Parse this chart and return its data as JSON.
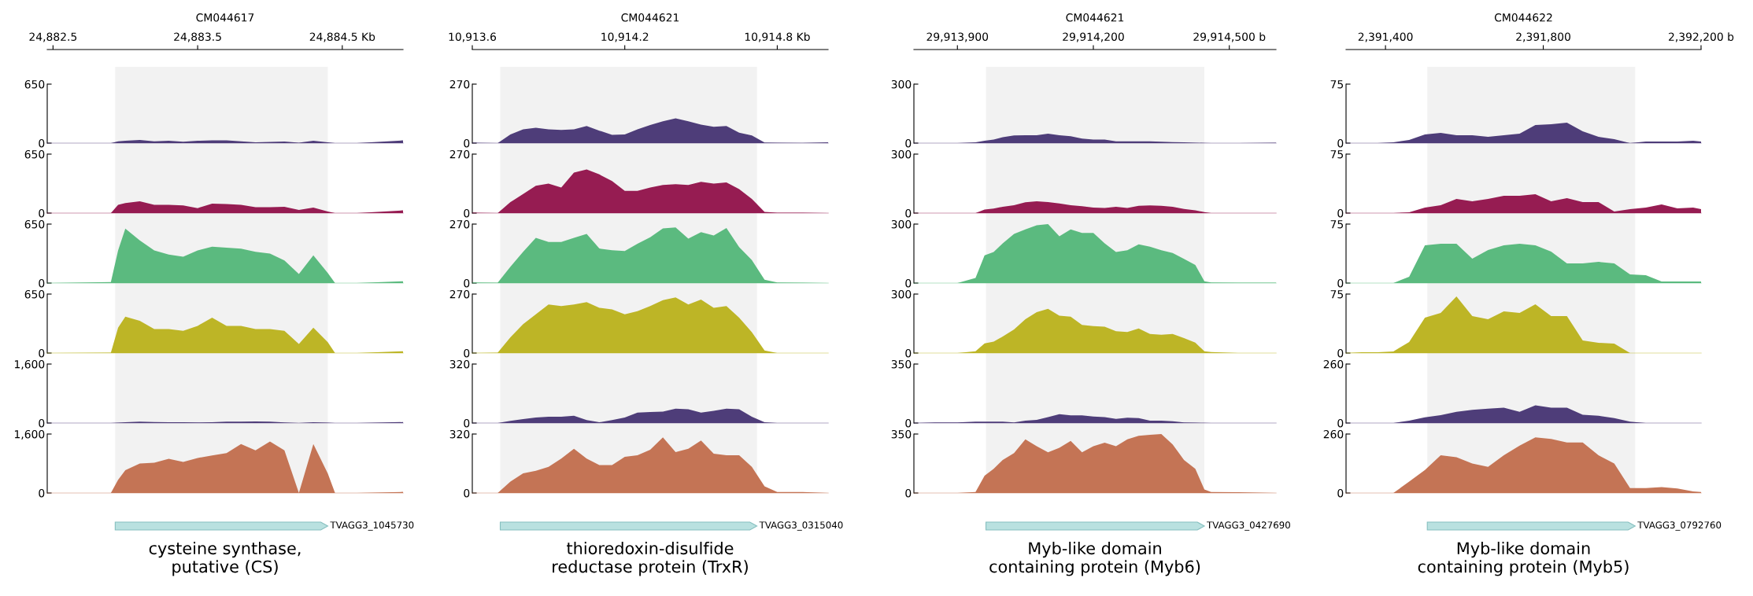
{
  "chart_data": [
    {
      "type": "area",
      "xlabel": "CM044617",
      "x": [
        24882.46,
        24882.9,
        24882.95,
        24883.0,
        24883.1,
        24883.2,
        24883.3,
        24883.4,
        24883.5,
        24883.6,
        24883.7,
        24883.8,
        24883.9,
        24884.0,
        24884.1,
        24884.2,
        24884.3,
        24884.4,
        24884.45,
        24884.6,
        24884.92
      ],
      "xlim": [
        24882.46,
        24884.92
      ],
      "xticks": [
        {
          "value": 24882.5,
          "label": "24,882.5"
        },
        {
          "value": 24883.5,
          "label": "24,883.5"
        },
        {
          "value": 24884.5,
          "label": "24,884.5 Kb"
        }
      ],
      "ylim": [
        0,
        650
      ],
      "yticks": [
        0,
        650
      ],
      "bands": [
        {
          "axis": "x",
          "from": 24882.93,
          "to": 24884.4,
          "color": "#f2f2f2"
        }
      ],
      "series": [
        {
          "color": "#4e3d79",
          "values": [
            0,
            0,
            20,
            25,
            35,
            20,
            25,
            15,
            25,
            30,
            30,
            20,
            8,
            12,
            18,
            5,
            25,
            8,
            0,
            0,
            30
          ]
        }
      ]
    },
    {
      "type": "area",
      "tick_labels": "y",
      "x": [
        24882.46,
        24882.9,
        24882.95,
        24883.0,
        24883.1,
        24883.2,
        24883.3,
        24883.4,
        24883.5,
        24883.6,
        24883.7,
        24883.8,
        24883.9,
        24884.0,
        24884.1,
        24884.2,
        24884.3,
        24884.4,
        24884.45,
        24884.6,
        24884.92
      ],
      "xlim": [
        24882.46,
        24884.92
      ],
      "ylim": [
        0,
        650
      ],
      "yticks": [
        0,
        650
      ],
      "bands": [
        {
          "axis": "x",
          "from": 24882.93,
          "to": 24884.4,
          "color": "#f2f2f2"
        }
      ],
      "series": [
        {
          "color": "#961c52",
          "values": [
            0,
            0,
            90,
            110,
            130,
            90,
            90,
            85,
            55,
            105,
            100,
            90,
            65,
            65,
            70,
            35,
            60,
            18,
            0,
            0,
            30
          ]
        }
      ]
    },
    {
      "type": "area",
      "tick_labels": "y",
      "x": [
        24882.46,
        24882.9,
        24882.95,
        24883.0,
        24883.1,
        24883.2,
        24883.3,
        24883.4,
        24883.5,
        24883.6,
        24883.7,
        24883.8,
        24883.9,
        24884.0,
        24884.1,
        24884.2,
        24884.3,
        24884.4,
        24884.45,
        24884.6,
        24884.92
      ],
      "xlim": [
        24882.46,
        24884.92
      ],
      "ylim": [
        0,
        650
      ],
      "yticks": [
        0,
        650
      ],
      "bands": [
        {
          "axis": "x",
          "from": 24882.93,
          "to": 24884.4,
          "color": "#f2f2f2"
        }
      ],
      "series": [
        {
          "color": "#5bba7f",
          "values": [
            0,
            10,
            360,
            600,
            470,
            360,
            315,
            290,
            360,
            400,
            390,
            380,
            345,
            325,
            250,
            100,
            305,
            110,
            0,
            0,
            20
          ]
        }
      ]
    },
    {
      "type": "area",
      "tick_labels": "y",
      "x": [
        24882.46,
        24882.9,
        24882.95,
        24883.0,
        24883.1,
        24883.2,
        24883.3,
        24883.4,
        24883.5,
        24883.6,
        24883.7,
        24883.8,
        24883.9,
        24884.0,
        24884.1,
        24884.2,
        24884.3,
        24884.4,
        24884.45,
        24884.6,
        24884.92
      ],
      "xlim": [
        24882.46,
        24884.92
      ],
      "ylim": [
        0,
        650
      ],
      "yticks": [
        0,
        650
      ],
      "bands": [
        {
          "axis": "x",
          "from": 24882.93,
          "to": 24884.4,
          "color": "#f2f2f2"
        }
      ],
      "series": [
        {
          "color": "#bdb526",
          "values": [
            0,
            5,
            280,
            400,
            355,
            265,
            265,
            245,
            300,
            390,
            300,
            300,
            265,
            265,
            245,
            100,
            280,
            120,
            0,
            0,
            20
          ]
        }
      ]
    },
    {
      "type": "area",
      "tick_labels": "y",
      "x": [
        24882.46,
        24882.9,
        24882.95,
        24883.0,
        24883.1,
        24883.2,
        24883.3,
        24883.4,
        24883.5,
        24883.6,
        24883.7,
        24883.8,
        24883.9,
        24884.0,
        24884.1,
        24884.2,
        24884.3,
        24884.4,
        24884.45,
        24884.6,
        24884.92
      ],
      "xlim": [
        24882.46,
        24884.92
      ],
      "ylim": [
        0,
        1600
      ],
      "yticks": [
        0,
        {
          "value": 1600,
          "label": "1,600"
        }
      ],
      "bands": [
        {
          "axis": "x",
          "from": 24882.93,
          "to": 24884.4,
          "color": "#f2f2f2"
        }
      ],
      "series": [
        {
          "color": "#4e3d79",
          "values": [
            0,
            0,
            10,
            20,
            40,
            25,
            20,
            20,
            15,
            20,
            35,
            40,
            45,
            35,
            15,
            0,
            20,
            10,
            0,
            0,
            25
          ]
        }
      ]
    },
    {
      "type": "area",
      "tick_labels": "y",
      "x": [
        24882.46,
        24882.9,
        24882.95,
        24883.0,
        24883.1,
        24883.2,
        24883.3,
        24883.4,
        24883.5,
        24883.6,
        24883.7,
        24883.8,
        24883.9,
        24884.0,
        24884.1,
        24884.2,
        24884.3,
        24884.4,
        24884.45,
        24884.6,
        24884.92
      ],
      "xlim": [
        24882.46,
        24884.92
      ],
      "ylim": [
        0,
        1600
      ],
      "yticks": [
        0,
        {
          "value": 1600,
          "label": "1,600"
        }
      ],
      "bands": [
        {
          "axis": "x",
          "from": 24882.93,
          "to": 24884.4,
          "color": "#f2f2f2"
        }
      ],
      "annotations": [
        "TVAGG3_1045730",
        "cysteine synthase,\nputative (CS)"
      ],
      "series": [
        {
          "color": "#c47455",
          "values": [
            0,
            0,
            355,
            620,
            800,
            820,
            930,
            845,
            950,
            1020,
            1085,
            1330,
            1155,
            1400,
            1155,
            0,
            1330,
            530,
            0,
            0,
            30
          ]
        }
      ]
    },
    {
      "type": "area",
      "xlabel": "CM044621",
      "x": [
        10913.6,
        10913.7,
        10913.75,
        10913.8,
        10913.85,
        10913.9,
        10913.95,
        10914.0,
        10914.05,
        10914.1,
        10914.15,
        10914.2,
        10914.25,
        10914.3,
        10914.35,
        10914.4,
        10914.45,
        10914.5,
        10914.55,
        10914.6,
        10914.65,
        10914.7,
        10914.75,
        10914.8,
        10914.9,
        10915.0
      ],
      "xlim": [
        10913.6,
        10915.0
      ],
      "xticks": [
        {
          "value": 10913.6,
          "label": "10,913.6"
        },
        {
          "value": 10914.2,
          "label": "10,914.2"
        },
        {
          "value": 10914.8,
          "label": "10,914.8 Kb"
        }
      ],
      "ylim": [
        0,
        270
      ],
      "yticks": [
        0,
        270
      ],
      "bands": [
        {
          "axis": "x",
          "from": 10913.71,
          "to": 10914.72,
          "color": "#f2f2f2"
        }
      ],
      "series": [
        {
          "color": "#4e3d79",
          "values": [
            2,
            0,
            40,
            63,
            70,
            63,
            60,
            63,
            78,
            57,
            38,
            40,
            63,
            83,
            100,
            113,
            100,
            85,
            75,
            78,
            48,
            35,
            3,
            2,
            1,
            4
          ]
        }
      ]
    },
    {
      "type": "area",
      "tick_labels": "y",
      "x": [
        10913.6,
        10913.7,
        10913.75,
        10913.8,
        10913.85,
        10913.9,
        10913.95,
        10914.0,
        10914.05,
        10914.1,
        10914.15,
        10914.2,
        10914.25,
        10914.3,
        10914.35,
        10914.4,
        10914.45,
        10914.5,
        10914.55,
        10914.6,
        10914.65,
        10914.7,
        10914.75,
        10914.8,
        10914.9,
        10915.0
      ],
      "xlim": [
        10913.6,
        10915.0
      ],
      "ylim": [
        0,
        270
      ],
      "yticks": [
        0,
        270
      ],
      "bands": [
        {
          "axis": "x",
          "from": 10913.71,
          "to": 10914.72,
          "color": "#f2f2f2"
        }
      ],
      "series": [
        {
          "color": "#961c52",
          "values": [
            2,
            0,
            50,
            87,
            125,
            135,
            117,
            185,
            200,
            177,
            147,
            102,
            102,
            117,
            129,
            132,
            129,
            143,
            135,
            140,
            110,
            65,
            5,
            2,
            2,
            0
          ]
        }
      ]
    },
    {
      "type": "area",
      "tick_labels": "y",
      "x": [
        10913.6,
        10913.7,
        10913.75,
        10913.8,
        10913.85,
        10913.9,
        10913.95,
        10914.0,
        10914.05,
        10914.1,
        10914.15,
        10914.2,
        10914.25,
        10914.3,
        10914.35,
        10914.4,
        10914.45,
        10914.5,
        10914.55,
        10914.6,
        10914.65,
        10914.7,
        10914.75,
        10914.8,
        10914.9,
        10915.0
      ],
      "xlim": [
        10913.6,
        10915.0
      ],
      "ylim": [
        0,
        270
      ],
      "yticks": [
        0,
        270
      ],
      "bands": [
        {
          "axis": "x",
          "from": 10913.71,
          "to": 10914.72,
          "color": "#f2f2f2"
        }
      ],
      "series": [
        {
          "color": "#5bba7f",
          "values": [
            3,
            2,
            75,
            143,
            207,
            188,
            188,
            207,
            225,
            158,
            150,
            147,
            180,
            210,
            250,
            255,
            203,
            233,
            218,
            252,
            165,
            105,
            15,
            3,
            2,
            0
          ]
        }
      ]
    },
    {
      "type": "area",
      "tick_labels": "y",
      "x": [
        10913.6,
        10913.7,
        10913.75,
        10913.8,
        10913.85,
        10913.9,
        10913.95,
        10914.0,
        10914.05,
        10914.1,
        10914.15,
        10914.2,
        10914.25,
        10914.3,
        10914.35,
        10914.4,
        10914.45,
        10914.5,
        10914.55,
        10914.6,
        10914.65,
        10914.7,
        10914.75,
        10914.8,
        10914.9,
        10915.0
      ],
      "xlim": [
        10913.6,
        10915.0
      ],
      "ylim": [
        0,
        270
      ],
      "yticks": [
        0,
        270
      ],
      "bands": [
        {
          "axis": "x",
          "from": 10913.71,
          "to": 10914.72,
          "color": "#f2f2f2"
        }
      ],
      "series": [
        {
          "color": "#bdb526",
          "values": [
            0,
            2,
            72,
            132,
            177,
            222,
            215,
            222,
            233,
            207,
            200,
            177,
            192,
            215,
            242,
            255,
            222,
            245,
            207,
            215,
            162,
            95,
            12,
            0,
            0,
            0
          ]
        }
      ]
    },
    {
      "type": "area",
      "tick_labels": "y",
      "x": [
        10913.6,
        10913.7,
        10913.75,
        10913.8,
        10913.85,
        10913.9,
        10913.95,
        10914.0,
        10914.05,
        10914.1,
        10914.15,
        10914.2,
        10914.25,
        10914.3,
        10914.35,
        10914.4,
        10914.45,
        10914.5,
        10914.55,
        10914.6,
        10914.65,
        10914.7,
        10914.75,
        10914.8,
        10914.9,
        10915.0
      ],
      "xlim": [
        10913.6,
        10915.0
      ],
      "ylim": [
        0,
        320
      ],
      "yticks": [
        0,
        320
      ],
      "bands": [
        {
          "axis": "x",
          "from": 10913.71,
          "to": 10914.72,
          "color": "#f2f2f2"
        }
      ],
      "series": [
        {
          "color": "#4e3d79",
          "values": [
            0,
            0,
            12,
            21,
            30,
            34,
            34,
            39,
            16,
            4,
            16,
            30,
            57,
            60,
            62,
            78,
            75,
            57,
            66,
            78,
            75,
            34,
            4,
            0,
            0,
            0
          ]
        }
      ]
    },
    {
      "type": "area",
      "tick_labels": "y",
      "x": [
        10913.6,
        10913.7,
        10913.75,
        10913.8,
        10913.85,
        10913.9,
        10913.95,
        10914.0,
        10914.05,
        10914.1,
        10914.15,
        10914.2,
        10914.25,
        10914.3,
        10914.35,
        10914.4,
        10914.45,
        10914.5,
        10914.55,
        10914.6,
        10914.65,
        10914.7,
        10914.75,
        10914.8,
        10914.9,
        10915.0
      ],
      "xlim": [
        10913.6,
        10915.0
      ],
      "ylim": [
        0,
        320
      ],
      "yticks": [
        0,
        320
      ],
      "bands": [
        {
          "axis": "x",
          "from": 10913.71,
          "to": 10914.72,
          "color": "#f2f2f2"
        }
      ],
      "annotations": [
        "TVAGG3_0315040",
        "thioredoxin-disulfide\nreductase protein (TrxR)"
      ],
      "series": [
        {
          "color": "#c47455",
          "values": [
            0,
            0,
            62,
            107,
            121,
            142,
            187,
            240,
            187,
            151,
            151,
            196,
            205,
            235,
            302,
            222,
            240,
            285,
            213,
            205,
            205,
            142,
            36,
            5,
            5,
            0
          ]
        }
      ]
    },
    {
      "type": "area",
      "xlabel": "CM044621",
      "x": [
        29913804,
        29913850,
        29913900,
        29913940,
        29913960,
        29913980,
        29914000,
        29914025,
        29914050,
        29914075,
        29914100,
        29914125,
        29914150,
        29914175,
        29914200,
        29914225,
        29914250,
        29914275,
        29914300,
        29914325,
        29914350,
        29914375,
        29914400,
        29914425,
        29914445,
        29914460,
        29914520,
        29914603
      ],
      "xlim": [
        29913804,
        29914603
      ],
      "xticks": [
        {
          "value": 29913900,
          "label": "29,913,900"
        },
        {
          "value": 29914200,
          "label": "29,914,200"
        },
        {
          "value": 29914500,
          "label": "29,914,500 b"
        }
      ],
      "ylim": [
        0,
        300
      ],
      "yticks": [
        0,
        300
      ],
      "bands": [
        {
          "axis": "x",
          "from": 29913963,
          "to": 29914445,
          "color": "#f2f2f2"
        }
      ],
      "series": [
        {
          "color": "#4e3d79",
          "values": [
            0,
            0,
            0,
            4,
            12,
            18,
            30,
            39,
            40,
            40,
            48,
            40,
            35,
            23,
            18,
            18,
            9,
            9,
            9,
            9,
            7,
            5,
            4,
            2,
            1,
            0,
            0,
            2
          ]
        }
      ]
    },
    {
      "type": "area",
      "tick_labels": "y",
      "x": [
        29913804,
        29913850,
        29913900,
        29913940,
        29913960,
        29913980,
        29914000,
        29914025,
        29914050,
        29914075,
        29914100,
        29914125,
        29914150,
        29914175,
        29914200,
        29914225,
        29914250,
        29914275,
        29914300,
        29914325,
        29914350,
        29914375,
        29914400,
        29914425,
        29914445,
        29914460,
        29914520,
        29914603
      ],
      "xlim": [
        29913804,
        29914603
      ],
      "ylim": [
        0,
        300
      ],
      "yticks": [
        0,
        300
      ],
      "bands": [
        {
          "axis": "x",
          "from": 29913963,
          "to": 29914445,
          "color": "#f2f2f2"
        }
      ],
      "series": [
        {
          "color": "#961c52",
          "values": [
            0,
            0,
            0,
            0,
            18,
            23,
            32,
            40,
            55,
            60,
            56,
            49,
            40,
            35,
            28,
            26,
            32,
            26,
            37,
            39,
            37,
            32,
            21,
            14,
            5,
            0,
            0,
            0
          ]
        }
      ]
    },
    {
      "type": "area",
      "tick_labels": "y",
      "x": [
        29913804,
        29913850,
        29913900,
        29913940,
        29913960,
        29913980,
        29914000,
        29914025,
        29914050,
        29914075,
        29914100,
        29914125,
        29914150,
        29914175,
        29914200,
        29914225,
        29914250,
        29914275,
        29914300,
        29914325,
        29914350,
        29914375,
        29914400,
        29914425,
        29914445,
        29914460,
        29914520,
        29914603
      ],
      "xlim": [
        29913804,
        29914603
      ],
      "ylim": [
        0,
        300
      ],
      "yticks": [
        0,
        300
      ],
      "bands": [
        {
          "axis": "x",
          "from": 29913963,
          "to": 29914445,
          "color": "#f2f2f2"
        }
      ],
      "series": [
        {
          "color": "#5bba7f",
          "values": [
            0,
            0,
            0,
            26,
            141,
            158,
            202,
            250,
            273,
            294,
            300,
            238,
            273,
            255,
            255,
            202,
            158,
            167,
            197,
            185,
            167,
            153,
            123,
            92,
            9,
            3,
            2,
            2
          ]
        }
      ]
    },
    {
      "type": "area",
      "tick_labels": "y",
      "x": [
        29913804,
        29913850,
        29913900,
        29913940,
        29913960,
        29913980,
        29914000,
        29914025,
        29914050,
        29914075,
        29914100,
        29914125,
        29914150,
        29914175,
        29914200,
        29914225,
        29914250,
        29914275,
        29914300,
        29914325,
        29914350,
        29914375,
        29914400,
        29914425,
        29914445,
        29914460,
        29914520,
        29914603
      ],
      "xlim": [
        29913804,
        29914603
      ],
      "ylim": [
        0,
        300
      ],
      "yticks": [
        0,
        300
      ],
      "bands": [
        {
          "axis": "x",
          "from": 29913963,
          "to": 29914445,
          "color": "#f2f2f2"
        }
      ],
      "series": [
        {
          "color": "#bdb526",
          "values": [
            0,
            0,
            0,
            9,
            49,
            58,
            84,
            120,
            172,
            208,
            225,
            190,
            185,
            143,
            137,
            134,
            111,
            107,
            125,
            97,
            93,
            97,
            76,
            53,
            9,
            5,
            0,
            0
          ]
        }
      ]
    },
    {
      "type": "area",
      "tick_labels": "y",
      "x": [
        29913804,
        29913850,
        29913900,
        29913940,
        29913960,
        29913980,
        29914000,
        29914025,
        29914050,
        29914075,
        29914100,
        29914125,
        29914150,
        29914175,
        29914200,
        29914225,
        29914250,
        29914275,
        29914300,
        29914325,
        29914350,
        29914375,
        29914400,
        29914425,
        29914445,
        29914460,
        29914520,
        29914603
      ],
      "xlim": [
        29913804,
        29914603
      ],
      "ylim": [
        0,
        350
      ],
      "yticks": [
        0,
        350
      ],
      "bands": [
        {
          "axis": "x",
          "from": 29913963,
          "to": 29914445,
          "color": "#f2f2f2"
        }
      ],
      "series": [
        {
          "color": "#4e3d79",
          "values": [
            0,
            4,
            3,
            8,
            8,
            8,
            8,
            4,
            14,
            19,
            35,
            52,
            45,
            45,
            39,
            35,
            25,
            31,
            29,
            14,
            14,
            10,
            4,
            2,
            1,
            0,
            0,
            0
          ]
        }
      ]
    },
    {
      "type": "area",
      "tick_labels": "y",
      "x": [
        29913804,
        29913850,
        29913900,
        29913940,
        29913960,
        29913980,
        29914000,
        29914025,
        29914050,
        29914075,
        29914100,
        29914125,
        29914150,
        29914175,
        29914200,
        29914225,
        29914250,
        29914275,
        29914300,
        29914325,
        29914350,
        29914375,
        29914400,
        29914425,
        29914445,
        29914460,
        29914520,
        29914603
      ],
      "xlim": [
        29913804,
        29914603
      ],
      "ylim": [
        0,
        350
      ],
      "yticks": [
        0,
        350
      ],
      "bands": [
        {
          "axis": "x",
          "from": 29913963,
          "to": 29914445,
          "color": "#f2f2f2"
        }
      ],
      "annotations": [
        "TVAGG3_0427690",
        "Myb-like domain\ncontaining protein (Myb6)"
      ],
      "series": [
        {
          "color": "#c47455",
          "values": [
            0,
            0,
            0,
            6,
            103,
            144,
            196,
            237,
            319,
            278,
            241,
            268,
            309,
            241,
            278,
            299,
            278,
            319,
            340,
            345,
            350,
            288,
            196,
            144,
            21,
            6,
            5,
            0
          ]
        }
      ]
    },
    {
      "type": "area",
      "xlabel": "CM044622",
      "x": [
        2391300,
        2391340,
        2391380,
        2391420,
        2391460,
        2391500,
        2391540,
        2391580,
        2391620,
        2391660,
        2391700,
        2391740,
        2391780,
        2391820,
        2391860,
        2391900,
        2391940,
        2391980,
        2392020,
        2392060,
        2392100,
        2392140,
        2392180,
        2392200
      ],
      "xlim": [
        2391300,
        2392200
      ],
      "xticks": [
        {
          "value": 2391400,
          "label": "2,391,400"
        },
        {
          "value": 2391800,
          "label": "2,391,800"
        },
        {
          "value": 2392200,
          "label": "2,392,200 b"
        }
      ],
      "ylim": [
        0,
        75
      ],
      "yticks": [
        0,
        75
      ],
      "bands": [
        {
          "axis": "x",
          "from": 2391506,
          "to": 2392033,
          "color": "#f2f2f2"
        }
      ],
      "series": [
        {
          "color": "#4e3d79",
          "values": [
            0,
            0,
            0,
            1,
            4,
            11,
            13,
            10,
            10,
            8,
            10,
            12,
            23,
            24,
            26,
            15,
            8,
            5,
            0,
            2,
            2,
            2,
            3,
            2
          ]
        }
      ]
    },
    {
      "type": "area",
      "tick_labels": "y",
      "x": [
        2391300,
        2391340,
        2391380,
        2391420,
        2391460,
        2391500,
        2391540,
        2391580,
        2391620,
        2391660,
        2391700,
        2391740,
        2391780,
        2391820,
        2391860,
        2391900,
        2391940,
        2391980,
        2392020,
        2392060,
        2392100,
        2392140,
        2392180,
        2392200
      ],
      "xlim": [
        2391300,
        2392200
      ],
      "ylim": [
        0,
        75
      ],
      "yticks": [
        0,
        75
      ],
      "bands": [
        {
          "axis": "x",
          "from": 2391506,
          "to": 2392033,
          "color": "#f2f2f2"
        }
      ],
      "series": [
        {
          "color": "#961c52",
          "values": [
            0,
            0,
            0,
            0,
            1,
            7,
            10,
            18,
            15,
            18,
            22,
            22,
            24,
            15,
            19,
            14,
            14,
            2,
            5,
            7,
            11,
            6,
            7,
            5
          ]
        }
      ]
    },
    {
      "type": "area",
      "tick_labels": "y",
      "x": [
        2391300,
        2391340,
        2391380,
        2391420,
        2391460,
        2391500,
        2391540,
        2391580,
        2391620,
        2391660,
        2391700,
        2391740,
        2391780,
        2391820,
        2391860,
        2391900,
        2391940,
        2391980,
        2392020,
        2392060,
        2392100,
        2392140,
        2392180,
        2392200
      ],
      "xlim": [
        2391300,
        2392200
      ],
      "ylim": [
        0,
        75
      ],
      "yticks": [
        0,
        75
      ],
      "bands": [
        {
          "axis": "x",
          "from": 2391506,
          "to": 2392033,
          "color": "#f2f2f2"
        }
      ],
      "series": [
        {
          "color": "#5bba7f",
          "values": [
            0,
            0,
            0,
            0,
            8,
            48,
            50,
            50,
            31,
            42,
            48,
            50,
            48,
            40,
            25,
            25,
            27,
            25,
            11,
            10,
            2,
            2,
            2,
            2
          ]
        }
      ]
    },
    {
      "type": "area",
      "tick_labels": "y",
      "x": [
        2391300,
        2391340,
        2391380,
        2391420,
        2391460,
        2391500,
        2391540,
        2391580,
        2391620,
        2391660,
        2391700,
        2391740,
        2391780,
        2391820,
        2391860,
        2391900,
        2391940,
        2391980,
        2392020,
        2392060,
        2392100,
        2392140,
        2392180,
        2392200
      ],
      "xlim": [
        2391300,
        2392200
      ],
      "ylim": [
        0,
        75
      ],
      "yticks": [
        0,
        75
      ],
      "bands": [
        {
          "axis": "x",
          "from": 2391506,
          "to": 2392033,
          "color": "#f2f2f2"
        }
      ],
      "series": [
        {
          "color": "#bdb526",
          "values": [
            0,
            1,
            1,
            2,
            14,
            45,
            51,
            72,
            47,
            43,
            53,
            51,
            62,
            47,
            47,
            16,
            13,
            12,
            0,
            0,
            0,
            0,
            0,
            0
          ]
        }
      ]
    },
    {
      "type": "area",
      "tick_labels": "y",
      "x": [
        2391300,
        2391340,
        2391380,
        2391420,
        2391460,
        2391500,
        2391540,
        2391580,
        2391620,
        2391660,
        2391700,
        2391740,
        2391780,
        2391820,
        2391860,
        2391900,
        2391940,
        2391980,
        2392020,
        2392060,
        2392100,
        2392140,
        2392180,
        2392200
      ],
      "xlim": [
        2391300,
        2392200
      ],
      "ylim": [
        0,
        260
      ],
      "yticks": [
        0,
        260
      ],
      "bands": [
        {
          "axis": "x",
          "from": 2391506,
          "to": 2392033,
          "color": "#f2f2f2"
        }
      ],
      "series": [
        {
          "color": "#4e3d79",
          "values": [
            0,
            0,
            0,
            0,
            10,
            25,
            35,
            49,
            58,
            63,
            68,
            49,
            78,
            68,
            68,
            36,
            32,
            22,
            6,
            0,
            0,
            0,
            0,
            0
          ]
        }
      ]
    },
    {
      "type": "area",
      "tick_labels": "y",
      "x": [
        2391300,
        2391340,
        2391380,
        2391420,
        2391460,
        2391500,
        2391540,
        2391580,
        2391620,
        2391660,
        2391700,
        2391740,
        2391780,
        2391820,
        2391860,
        2391900,
        2391940,
        2391980,
        2392020,
        2392060,
        2392100,
        2392140,
        2392180,
        2392200
      ],
      "xlim": [
        2391300,
        2392200
      ],
      "ylim": [
        0,
        260
      ],
      "yticks": [
        0,
        260
      ],
      "bands": [
        {
          "axis": "x",
          "from": 2391506,
          "to": 2392033,
          "color": "#f2f2f2"
        }
      ],
      "annotations": [
        "TVAGG3_0792760",
        "Myb-like domain\ncontaining protein (Myb5)"
      ],
      "series": [
        {
          "color": "#c47455",
          "values": [
            0,
            0,
            0,
            0,
            50,
            101,
            166,
            158,
            130,
            115,
            166,
            209,
            245,
            238,
            223,
            223,
            166,
            130,
            22,
            22,
            26,
            20,
            7,
            4
          ]
        }
      ]
    }
  ]
}
